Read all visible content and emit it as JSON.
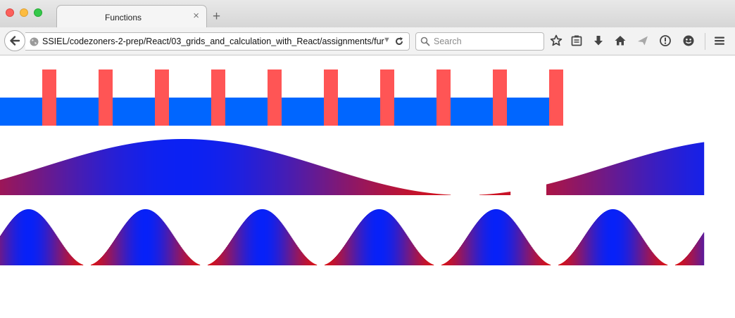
{
  "window": {
    "tab_title": "Functions",
    "tab_close": "×",
    "new_tab": "+"
  },
  "navbar": {
    "url": "SSIEL/codezoners-2-prep/React/03_grids_and_calculation_with_React/assignments/fur",
    "search_placeholder": "Search",
    "icons": [
      "back-arrow-icon",
      "globe-icon",
      "dropdown-icon",
      "reload-icon",
      "search-icon",
      "star-icon",
      "reading-list-icon",
      "download-icon",
      "home-icon",
      "send-icon",
      "info-icon",
      "smiley-icon",
      "menu-icon"
    ]
  },
  "colors": {
    "bar_blue": "#0066ff",
    "bar_red": "#ff5555",
    "wave_blue": "#0022ff",
    "wave_red": "#dd1111"
  },
  "figures": {
    "bars": {
      "posts": 10,
      "spacing_px": 80
    },
    "sine_wave": {
      "periods_visible": 1,
      "gap": true
    },
    "bell_waves": {
      "count": 6
    }
  }
}
